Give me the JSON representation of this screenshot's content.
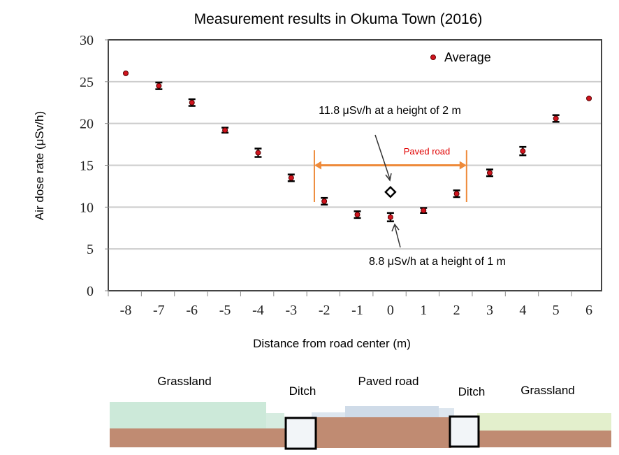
{
  "chart_data": {
    "type": "scatter",
    "title": "Measurement results in Okuma Town (2016)",
    "xlabel": "Distance from road center (m)",
    "ylabel": "Air dose rate (μSv/h)",
    "ylim": [
      0,
      30
    ],
    "yticks": [
      0,
      5,
      10,
      15,
      20,
      25,
      30
    ],
    "xticks": [
      -8,
      -7,
      -6,
      -5,
      -4,
      -3,
      -2,
      -1,
      0,
      1,
      2,
      3,
      4,
      5,
      6
    ],
    "grid": true,
    "legend": {
      "position": "top-right",
      "entries": [
        "Average"
      ]
    },
    "series": [
      {
        "name": "Average",
        "color": "#d0141e",
        "x": [
          -8,
          -7,
          -6,
          -5,
          -4,
          -3,
          -2,
          -1,
          0,
          1,
          2,
          3,
          4,
          5,
          6
        ],
        "y": [
          26.0,
          24.5,
          22.5,
          19.2,
          16.5,
          13.5,
          10.7,
          9.1,
          8.8,
          9.6,
          11.6,
          14.1,
          16.7,
          20.6,
          23.0
        ],
        "err": [
          0.1,
          0.4,
          0.4,
          0.3,
          0.5,
          0.4,
          0.4,
          0.4,
          0.5,
          0.3,
          0.4,
          0.4,
          0.5,
          0.4,
          0.1
        ]
      }
    ],
    "extra_point": {
      "x": 0,
      "y": 11.8,
      "marker": "diamond"
    },
    "annotations": [
      {
        "text": "11.8 μSv/h at a height of 2 m"
      },
      {
        "text": "8.8 μSv/h at a height of 1 m"
      },
      {
        "text": "Paved road",
        "color": "#e00000",
        "x_range": [
          -2.3,
          2.3
        ],
        "bar_color": "#ee8a3a"
      }
    ]
  },
  "cross_section": {
    "labels": [
      "Grassland",
      "Ditch",
      "Paved road",
      "Ditch",
      "Grassland"
    ],
    "colors": {
      "soil": "#c08b72",
      "grass_left": "#bfe3cf",
      "grass_right": "#e3efcc",
      "road": "#cfdbe8"
    }
  }
}
